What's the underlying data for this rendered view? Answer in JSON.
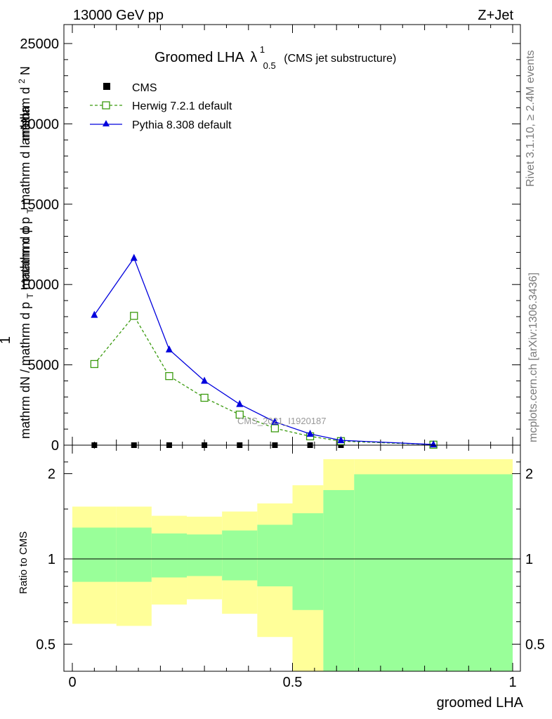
{
  "header": {
    "energy": "13000 GeV pp",
    "process": "Z+Jet"
  },
  "side_labels": {
    "rivet": "Rivet 3.1.10, ≥ 2.4M events",
    "source": "mcplots.cern.ch [arXiv:1306.3436]"
  },
  "watermark": "CMS_2021_I1920187",
  "chart_data": [
    {
      "type": "line",
      "title": {
        "main": "Groomed LHA",
        "lambda": "λ",
        "sup": "1",
        "sub": "0.5",
        "note": "(CMS jet substructure)"
      },
      "ylabel": {
        "prefix": "1",
        "frac1_num": "mathrm d",
        "frac1_num_sup": "2",
        "frac1_num_tail": "N",
        "frac1_den": "mathrm d p",
        "frac1_den_sub": "T",
        "frac1_den_tail": " mathrm d lambda",
        "frac2_num": "mathrm dN / mathrm d p",
        "frac2_num_sub": "T",
        "frac2_num_tail": "mathrm d p"
      },
      "xlim": [
        0,
        1
      ],
      "ylim": [
        0,
        25000
      ],
      "yticks": [
        0,
        5000,
        10000,
        15000,
        20000,
        25000
      ],
      "ytick_labels": [
        "0",
        "5000",
        "10000",
        "15000",
        "20000",
        "25000"
      ],
      "legend_position": "top-left",
      "series": [
        {
          "name": "CMS",
          "marker": "square",
          "color": "#000000",
          "x": [
            0.05,
            0.14,
            0.22,
            0.3,
            0.38,
            0.46,
            0.54,
            0.61,
            0.82
          ],
          "y": [
            0,
            0,
            0,
            0,
            0,
            0,
            0,
            0,
            0
          ]
        },
        {
          "name": "Herwig 7.2.1 default",
          "marker": "open-square",
          "color": "#3a9a0e",
          "line": "dashed",
          "x": [
            0.05,
            0.14,
            0.22,
            0.3,
            0.38,
            0.46,
            0.54,
            0.61,
            0.82
          ],
          "y": [
            5050,
            8050,
            4300,
            2950,
            1900,
            1050,
            550,
            250,
            30
          ]
        },
        {
          "name": "Pythia 8.308 default",
          "marker": "triangle",
          "color": "#0000dd",
          "line": "solid",
          "x": [
            0.05,
            0.14,
            0.22,
            0.3,
            0.38,
            0.46,
            0.54,
            0.61,
            0.82
          ],
          "y": [
            8100,
            11650,
            5950,
            4000,
            2550,
            1450,
            700,
            300,
            40
          ]
        }
      ]
    },
    {
      "type": "area",
      "ylabel": "Ratio to CMS",
      "xlabel": "groomed LHA",
      "xlim": [
        0,
        1
      ],
      "xticks": [
        0,
        0.5,
        1
      ],
      "xtick_labels": [
        "0",
        "0.5",
        "1"
      ],
      "ylim": [
        0.35,
        2.25
      ],
      "yticks": [
        0.5,
        1,
        2
      ],
      "ytick_labels": [
        "0.5",
        "1",
        "2"
      ],
      "reference_line": 1,
      "band_colors": {
        "inner": "#99ff99",
        "outer": "#ffff99"
      },
      "bins": [
        {
          "x0": 0.0,
          "x1": 0.1,
          "inner": [
            0.83,
            1.29
          ],
          "outer": [
            0.59,
            1.53
          ]
        },
        {
          "x0": 0.1,
          "x1": 0.18,
          "inner": [
            0.83,
            1.29
          ],
          "outer": [
            0.58,
            1.53
          ]
        },
        {
          "x0": 0.18,
          "x1": 0.26,
          "inner": [
            0.86,
            1.23
          ],
          "outer": [
            0.69,
            1.42
          ]
        },
        {
          "x0": 0.26,
          "x1": 0.34,
          "inner": [
            0.87,
            1.22
          ],
          "outer": [
            0.72,
            1.41
          ]
        },
        {
          "x0": 0.34,
          "x1": 0.42,
          "inner": [
            0.84,
            1.26
          ],
          "outer": [
            0.64,
            1.47
          ]
        },
        {
          "x0": 0.42,
          "x1": 0.5,
          "inner": [
            0.8,
            1.32
          ],
          "outer": [
            0.53,
            1.57
          ]
        },
        {
          "x0": 0.5,
          "x1": 0.57,
          "inner": [
            0.66,
            1.45
          ],
          "outer": [
            0.35,
            1.82
          ]
        },
        {
          "x0": 0.57,
          "x1": 0.64,
          "inner": [
            0.35,
            1.75
          ],
          "outer": [
            0.35,
            2.25
          ]
        },
        {
          "x0": 0.64,
          "x1": 1.0,
          "inner": [
            0.35,
            1.99
          ],
          "outer": [
            0.35,
            2.25
          ]
        }
      ]
    }
  ]
}
